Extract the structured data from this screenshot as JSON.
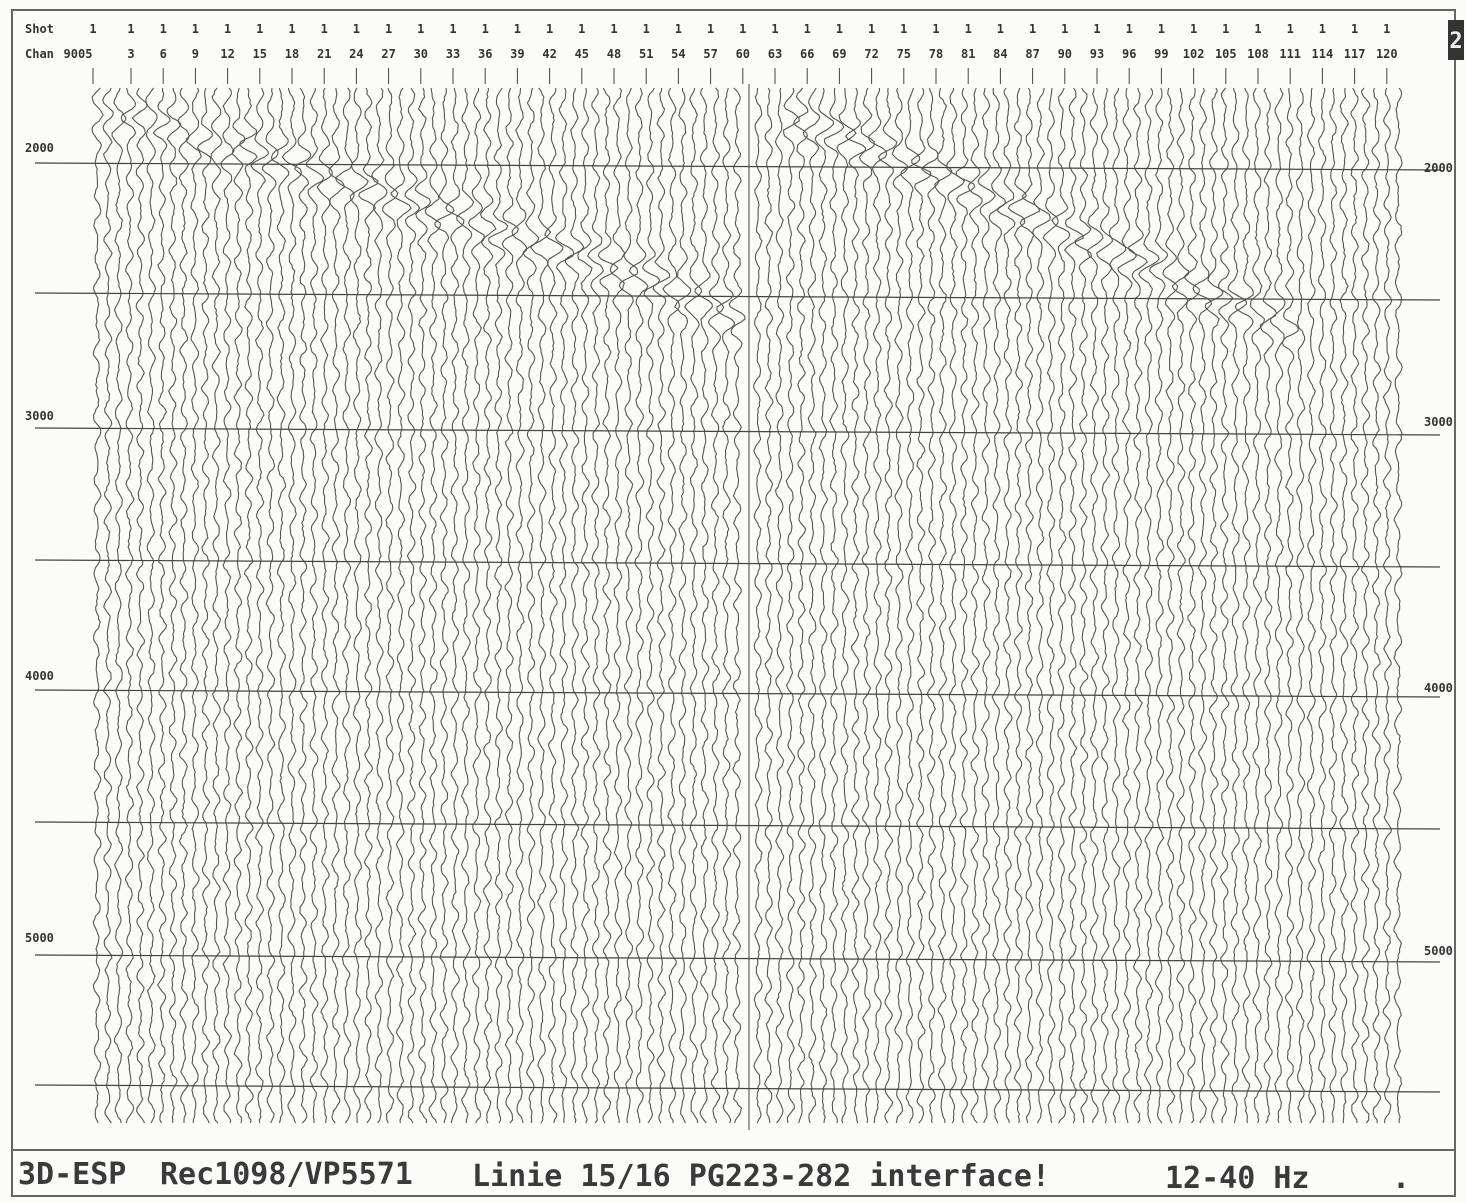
{
  "header": {
    "shot_label": "Shot",
    "chan_label": "Chan",
    "shots": [
      "1",
      "1",
      "1",
      "1",
      "1",
      "1",
      "1",
      "1",
      "1",
      "1",
      "1",
      "1",
      "1",
      "1",
      "1",
      "1",
      "1",
      "1",
      "1",
      "1",
      "1",
      "1",
      "1",
      "1",
      "1",
      "1",
      "1",
      "1",
      "1",
      "1",
      "1",
      "1",
      "1",
      "1",
      "1",
      "1",
      "1",
      "1",
      "1",
      "1",
      "1"
    ],
    "channels": [
      "9005",
      "3",
      "6",
      "9",
      "12",
      "15",
      "18",
      "21",
      "24",
      "27",
      "30",
      "33",
      "36",
      "39",
      "42",
      "45",
      "48",
      "51",
      "54",
      "57",
      "60",
      "63",
      "66",
      "69",
      "72",
      "75",
      "78",
      "81",
      "84",
      "87",
      "90",
      "93",
      "96",
      "99",
      "102",
      "105",
      "108",
      "111",
      "114",
      "117",
      "120"
    ]
  },
  "page_number": "2",
  "time_labels_left": [
    "2000",
    "3000",
    "4000",
    "5000"
  ],
  "time_labels_right": [
    "2000",
    "3000",
    "4000",
    "5000"
  ],
  "footer": {
    "survey": "3D-ESP",
    "record": "Rec1098/VP5571",
    "line": "Linie 15/16 PG223-282 interface!",
    "filter": "12-40 Hz",
    "marker": "."
  }
}
